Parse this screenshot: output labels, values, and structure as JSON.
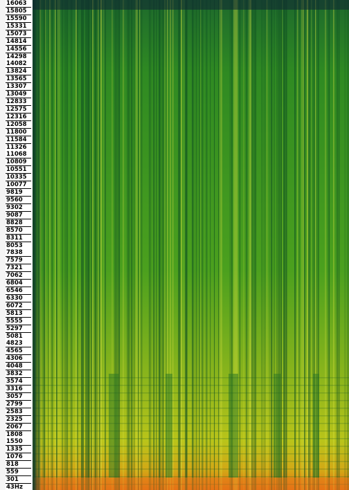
{
  "axis": {
    "labels": [
      "16063",
      "15805",
      "15590",
      "15331",
      "15073",
      "14814",
      "14556",
      "14298",
      "14082",
      "13824",
      "13565",
      "13307",
      "13049",
      "12833",
      "12575",
      "12316",
      "12058",
      "11800",
      "11584",
      "11326",
      "11068",
      "10809",
      "10551",
      "10335",
      "10077",
      "9819",
      "9560",
      "9302",
      "9087",
      "8828",
      "8570",
      "8311",
      "8053",
      "7838",
      "7579",
      "7321",
      "7062",
      "6804",
      "6546",
      "6330",
      "6072",
      "5813",
      "5555",
      "5297",
      "5081",
      "4823",
      "4565",
      "4306",
      "4048",
      "3832",
      "3574",
      "3316",
      "3057",
      "2799",
      "2583",
      "2325",
      "2067",
      "1808",
      "1550",
      "1335",
      "1076",
      "818",
      "559",
      "301",
      "43Hz"
    ]
  }
}
